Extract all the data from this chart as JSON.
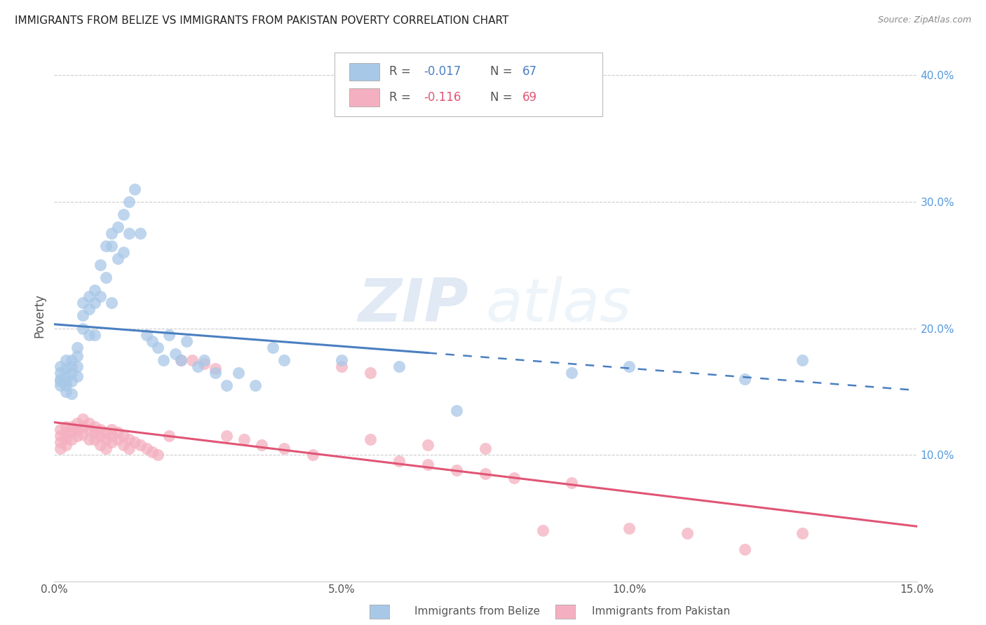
{
  "title": "IMMIGRANTS FROM BELIZE VS IMMIGRANTS FROM PAKISTAN POVERTY CORRELATION CHART",
  "source": "Source: ZipAtlas.com",
  "ylabel": "Poverty",
  "xlim": [
    0.0,
    0.15
  ],
  "ylim": [
    0.0,
    0.42
  ],
  "xticks": [
    0.0,
    0.05,
    0.1,
    0.15
  ],
  "xtick_labels": [
    "0.0%",
    "5.0%",
    "10.0%",
    "15.0%"
  ],
  "ytick_labels_right": [
    "10.0%",
    "20.0%",
    "30.0%",
    "40.0%"
  ],
  "yticks_right": [
    0.1,
    0.2,
    0.3,
    0.4
  ],
  "belize_color": "#a8c8e8",
  "pakistan_color": "#f4b0c0",
  "belize_R": -0.017,
  "belize_N": 67,
  "pakistan_R": -0.116,
  "pakistan_N": 69,
  "belize_line_color": "#4a7fc1",
  "pakistan_line_color": "#e05575",
  "grid_color": "#cccccc",
  "background_color": "#ffffff",
  "watermark_zip": "ZIP",
  "watermark_atlas": "atlas",
  "legend_label_belize": "Immigrants from Belize",
  "legend_label_pakistan": "Immigrants from Pakistan",
  "belize_x": [
    0.001,
    0.001,
    0.001,
    0.001,
    0.001,
    0.002,
    0.002,
    0.002,
    0.002,
    0.002,
    0.002,
    0.003,
    0.003,
    0.003,
    0.003,
    0.003,
    0.004,
    0.004,
    0.004,
    0.004,
    0.005,
    0.005,
    0.005,
    0.006,
    0.006,
    0.006,
    0.007,
    0.007,
    0.007,
    0.008,
    0.008,
    0.009,
    0.009,
    0.01,
    0.01,
    0.01,
    0.011,
    0.011,
    0.012,
    0.012,
    0.013,
    0.013,
    0.014,
    0.015,
    0.016,
    0.017,
    0.018,
    0.019,
    0.02,
    0.021,
    0.022,
    0.023,
    0.025,
    0.026,
    0.028,
    0.03,
    0.032,
    0.035,
    0.038,
    0.04,
    0.05,
    0.06,
    0.07,
    0.09,
    0.1,
    0.12,
    0.13
  ],
  "belize_y": [
    0.17,
    0.165,
    0.16,
    0.158,
    0.155,
    0.175,
    0.168,
    0.162,
    0.158,
    0.155,
    0.15,
    0.175,
    0.17,
    0.165,
    0.158,
    0.148,
    0.185,
    0.178,
    0.17,
    0.162,
    0.22,
    0.21,
    0.2,
    0.225,
    0.215,
    0.195,
    0.23,
    0.22,
    0.195,
    0.25,
    0.225,
    0.265,
    0.24,
    0.275,
    0.265,
    0.22,
    0.28,
    0.255,
    0.29,
    0.26,
    0.3,
    0.275,
    0.31,
    0.275,
    0.195,
    0.19,
    0.185,
    0.175,
    0.195,
    0.18,
    0.175,
    0.19,
    0.17,
    0.175,
    0.165,
    0.155,
    0.165,
    0.155,
    0.185,
    0.175,
    0.175,
    0.17,
    0.135,
    0.165,
    0.17,
    0.16,
    0.175
  ],
  "pakistan_x": [
    0.001,
    0.001,
    0.001,
    0.001,
    0.002,
    0.002,
    0.002,
    0.002,
    0.003,
    0.003,
    0.003,
    0.004,
    0.004,
    0.004,
    0.005,
    0.005,
    0.005,
    0.006,
    0.006,
    0.006,
    0.007,
    0.007,
    0.007,
    0.008,
    0.008,
    0.008,
    0.009,
    0.009,
    0.009,
    0.01,
    0.01,
    0.01,
    0.011,
    0.011,
    0.012,
    0.012,
    0.013,
    0.013,
    0.014,
    0.015,
    0.016,
    0.017,
    0.018,
    0.02,
    0.022,
    0.024,
    0.026,
    0.028,
    0.03,
    0.033,
    0.036,
    0.04,
    0.045,
    0.05,
    0.055,
    0.06,
    0.065,
    0.07,
    0.075,
    0.08,
    0.09,
    0.1,
    0.11,
    0.12,
    0.13,
    0.055,
    0.065,
    0.075,
    0.085
  ],
  "pakistan_y": [
    0.12,
    0.115,
    0.11,
    0.105,
    0.122,
    0.118,
    0.113,
    0.108,
    0.122,
    0.118,
    0.112,
    0.125,
    0.12,
    0.115,
    0.128,
    0.122,
    0.116,
    0.125,
    0.12,
    0.112,
    0.122,
    0.118,
    0.112,
    0.12,
    0.115,
    0.108,
    0.118,
    0.112,
    0.105,
    0.12,
    0.115,
    0.11,
    0.118,
    0.112,
    0.115,
    0.108,
    0.112,
    0.105,
    0.11,
    0.108,
    0.105,
    0.102,
    0.1,
    0.115,
    0.175,
    0.175,
    0.172,
    0.168,
    0.115,
    0.112,
    0.108,
    0.105,
    0.1,
    0.17,
    0.165,
    0.095,
    0.092,
    0.088,
    0.085,
    0.082,
    0.078,
    0.042,
    0.038,
    0.025,
    0.038,
    0.112,
    0.108,
    0.105,
    0.04
  ]
}
